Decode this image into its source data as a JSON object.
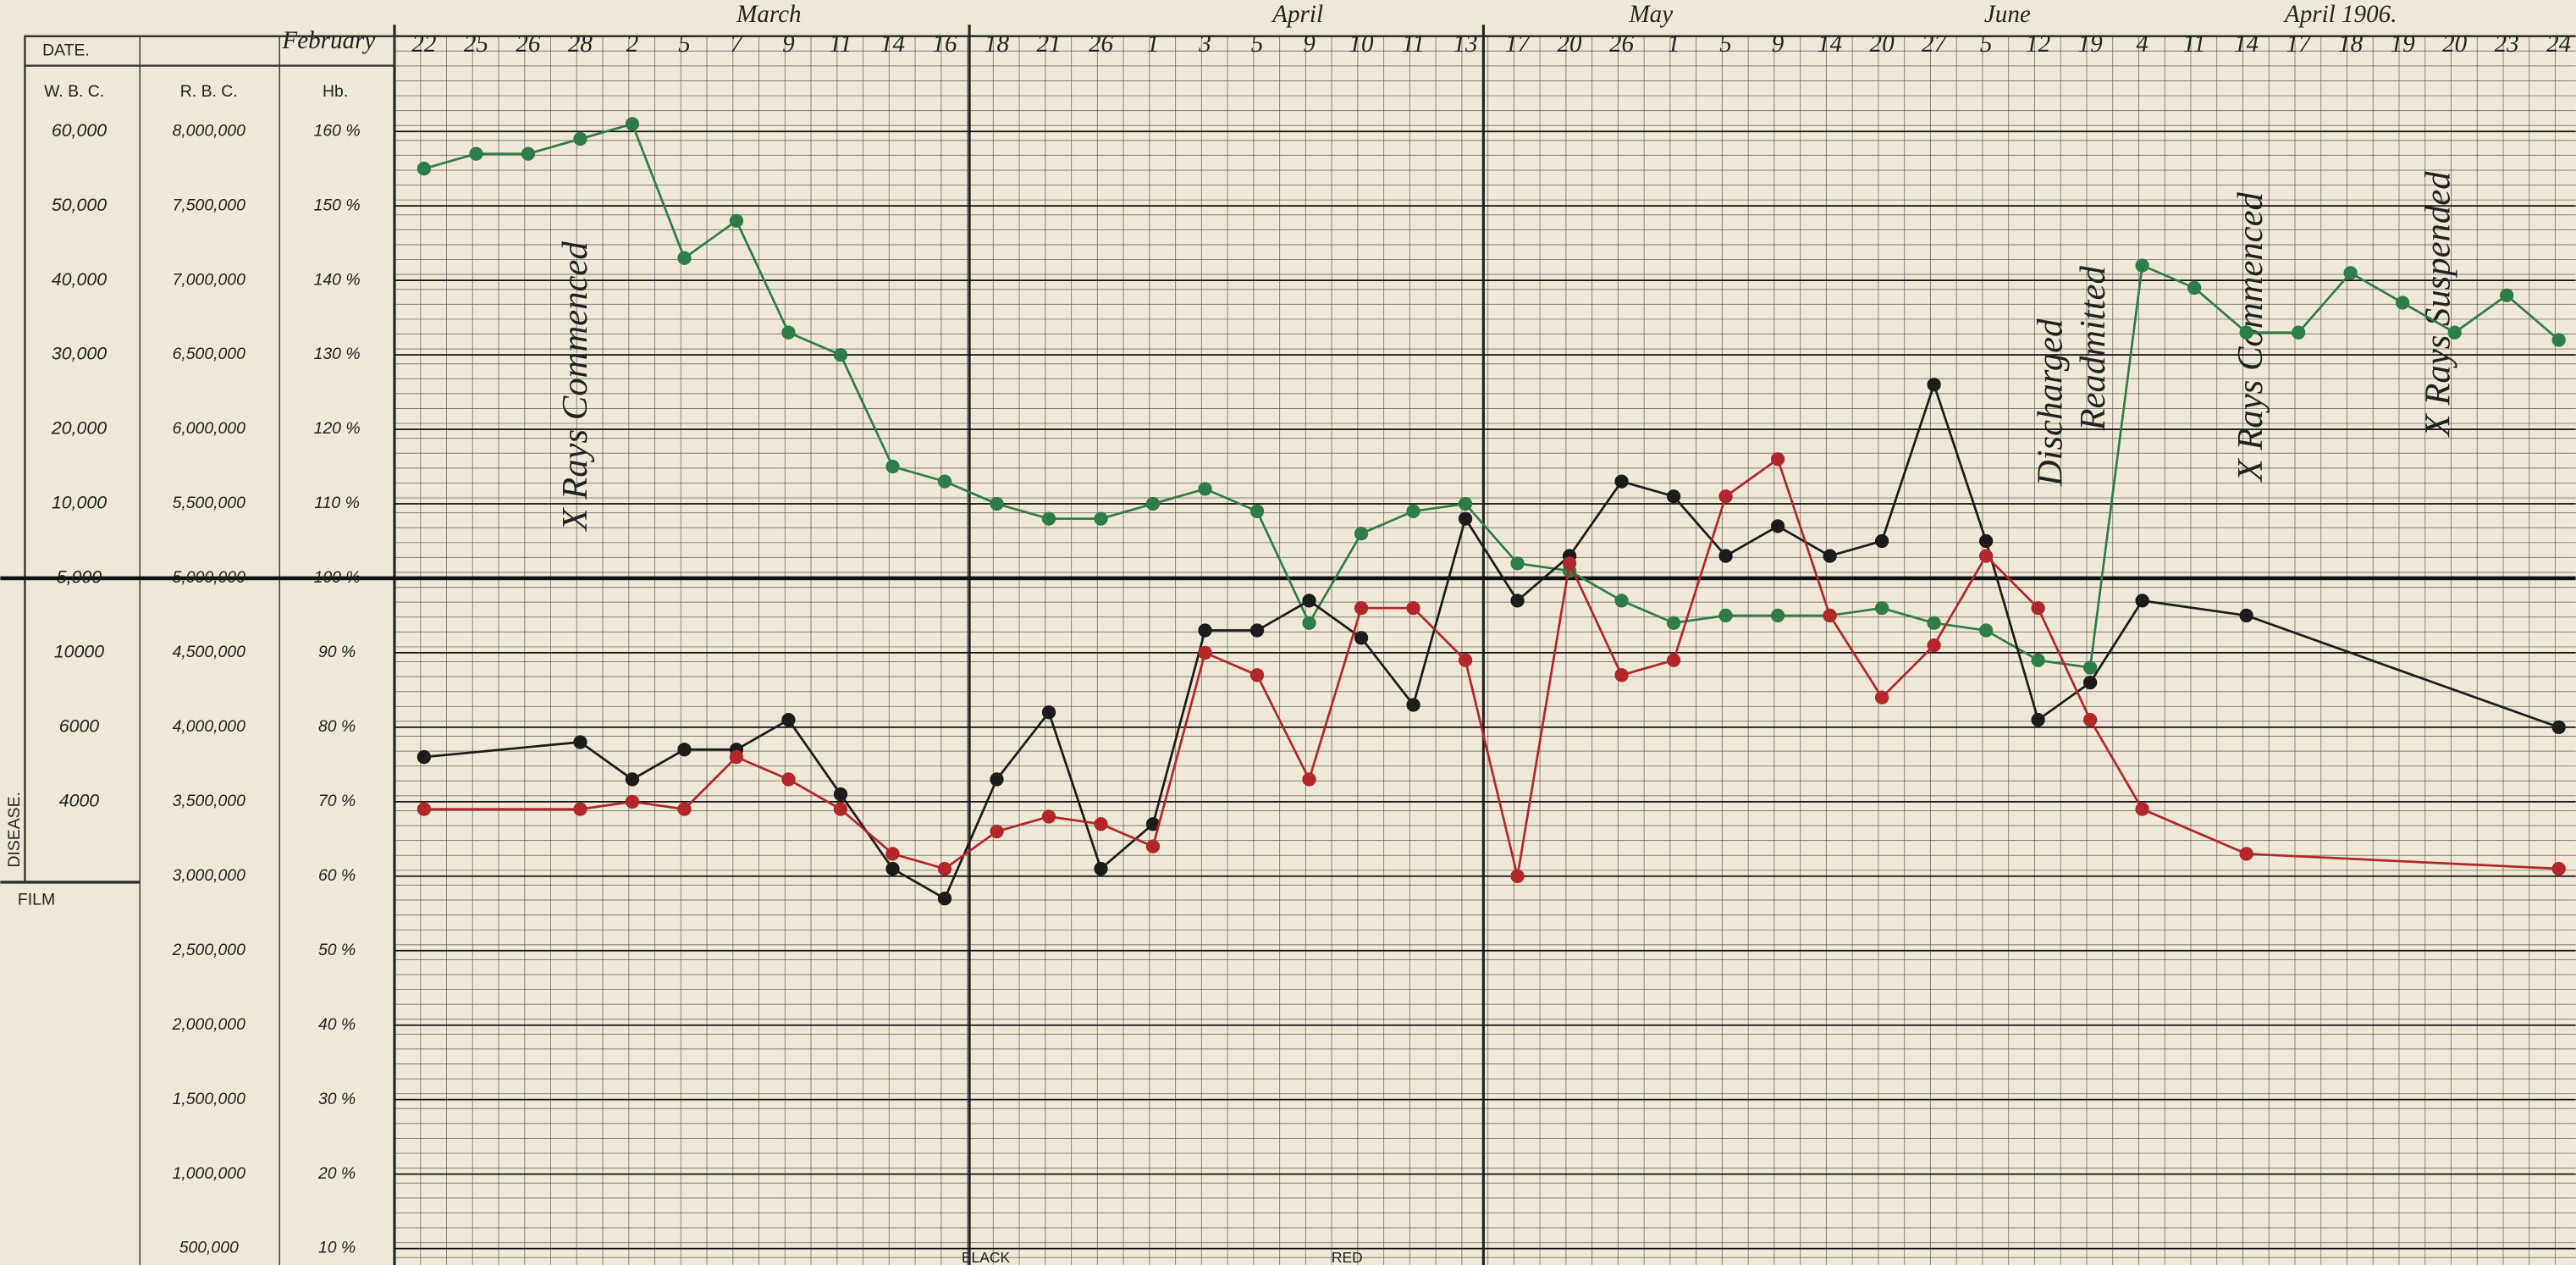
{
  "chart_data": {
    "type": "line",
    "headers": {
      "date": "DATE.",
      "wbc": "W. B. C.",
      "rbc": "R. B. C.",
      "hb": "Hb."
    },
    "side_labels": [
      "DISEASE.",
      "FILM"
    ],
    "months": [
      "February",
      "March",
      "April",
      "May",
      "June",
      "April 1906."
    ],
    "annotations": [
      "X Rays Commenced",
      "Discharged",
      "Readmitted",
      "X Rays Commenced",
      "X Rays Suspended"
    ],
    "footer": [
      "BLACK",
      "RED"
    ],
    "categories": [
      "22",
      "25",
      "26",
      "28",
      "2",
      "5",
      "7",
      "9",
      "11",
      "14",
      "16",
      "18",
      "21",
      "26",
      "1",
      "3",
      "5",
      "9",
      "10",
      "11",
      "13",
      "17",
      "20",
      "26",
      "1",
      "5",
      "9",
      "14",
      "20",
      "27",
      "5",
      "12",
      "19",
      "4",
      "11",
      "14",
      "17",
      "18",
      "19",
      "20",
      "23",
      "24"
    ],
    "ylim": [
      10,
      160
    ],
    "yticks": [
      {
        "value": 160,
        "label": "160 %"
      },
      {
        "value": 150,
        "label": "150 %"
      },
      {
        "value": 140,
        "label": "140 %"
      },
      {
        "value": 130,
        "label": "130 %"
      },
      {
        "value": 120,
        "label": "120 %"
      },
      {
        "value": 110,
        "label": "110 %"
      },
      {
        "value": 100,
        "label": "100 %"
      },
      {
        "value": 90,
        "label": "90 %"
      },
      {
        "value": 80,
        "label": "80 %"
      },
      {
        "value": 70,
        "label": "70 %"
      },
      {
        "value": 60,
        "label": "60 %"
      },
      {
        "value": 50,
        "label": "50 %"
      },
      {
        "value": 40,
        "label": "40 %"
      },
      {
        "value": 30,
        "label": "30 %"
      },
      {
        "value": 20,
        "label": "20 %"
      },
      {
        "value": 10,
        "label": "10 %"
      }
    ],
    "y2lim": [
      500000,
      8000000
    ],
    "y2ticks": [
      {
        "value": 8000000,
        "label": "8,000,000"
      },
      {
        "value": 7500000,
        "label": "7,500,000"
      },
      {
        "value": 7000000,
        "label": "7,000,000"
      },
      {
        "value": 6500000,
        "label": "6,500,000"
      },
      {
        "value": 6000000,
        "label": "6,000,000"
      },
      {
        "value": 5500000,
        "label": "5,500,000"
      },
      {
        "value": 5000000,
        "label": "5,000,000"
      },
      {
        "value": 4500000,
        "label": "4,500,000"
      },
      {
        "value": 4000000,
        "label": "4,000,000"
      },
      {
        "value": 3500000,
        "label": "3,500,000"
      },
      {
        "value": 3000000,
        "label": "3,000,000"
      },
      {
        "value": 2500000,
        "label": "2,500,000"
      },
      {
        "value": 2000000,
        "label": "2,000,000"
      },
      {
        "value": 1500000,
        "label": "1,500,000"
      },
      {
        "value": 1000000,
        "label": "1,000,000"
      },
      {
        "value": 500000,
        "label": "500,000"
      }
    ],
    "wbc_labels": [
      "60,000",
      "50,000",
      "40,000",
      "30,000",
      "20,000",
      "10,000",
      "5,000",
      "10000",
      "6000",
      "4000"
    ],
    "series": [
      {
        "color": "#2f7d46",
        "values": [
          155,
          157,
          157,
          159,
          161,
          143,
          148,
          133,
          130,
          115,
          113,
          110,
          108,
          108,
          110,
          112,
          109,
          94,
          106,
          109,
          110,
          102,
          101,
          97,
          94,
          95,
          95,
          95,
          96,
          94,
          93,
          89,
          88,
          142,
          139,
          133,
          133,
          141,
          137,
          133,
          138,
          132
        ]
      },
      {
        "color": "#1c1c1c",
        "values": [
          76,
          null,
          null,
          78,
          73,
          77,
          77,
          81,
          71,
          61,
          57,
          73,
          82,
          61,
          67,
          93,
          93,
          97,
          92,
          83,
          108,
          97,
          103,
          113,
          111,
          103,
          107,
          103,
          105,
          126,
          105,
          81,
          86,
          97,
          null,
          95,
          null,
          null,
          null,
          null,
          null,
          80
        ]
      },
      {
        "color": "#b3262a",
        "values": [
          69,
          null,
          null,
          69,
          70,
          69,
          76,
          73,
          69,
          63,
          61,
          66,
          68,
          67,
          64,
          90,
          87,
          73,
          96,
          96,
          89,
          60,
          102,
          87,
          89,
          111,
          116,
          95,
          84,
          91,
          103,
          96,
          81,
          69,
          null,
          63,
          null,
          null,
          null,
          null,
          null,
          61
        ]
      }
    ]
  }
}
